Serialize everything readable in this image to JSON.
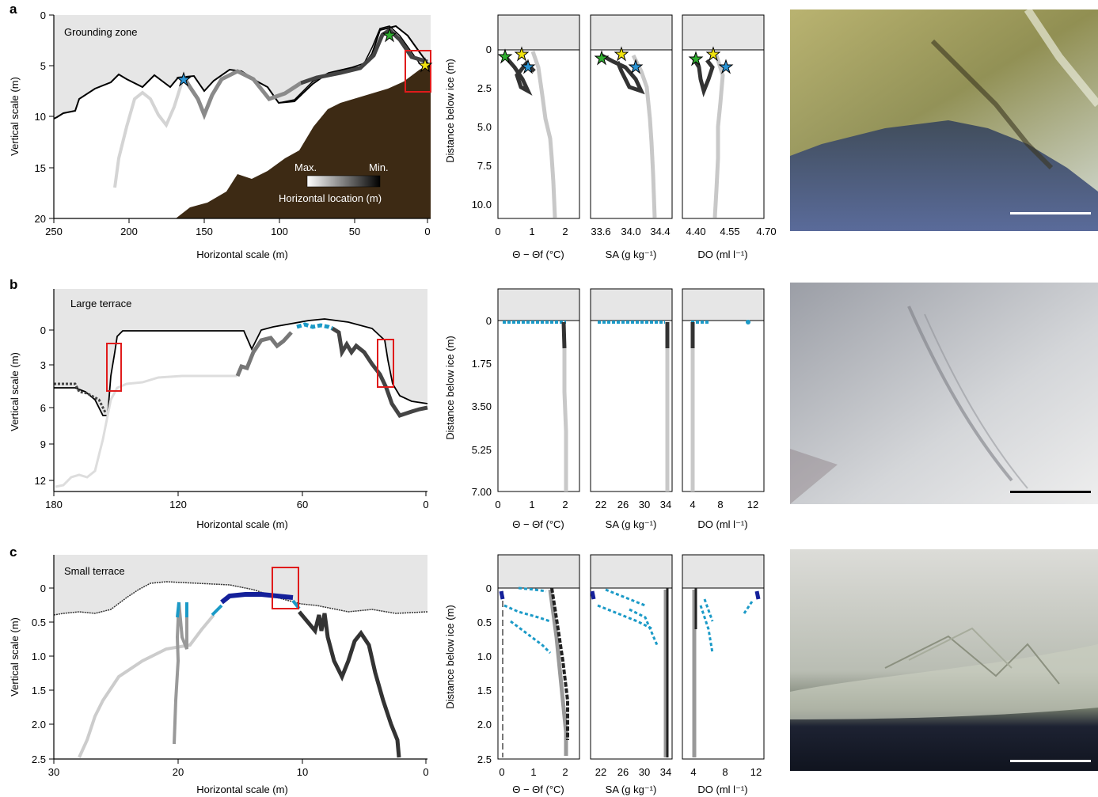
{
  "figure": {
    "panels": [
      {
        "letter": "a",
        "section_label": "Grounding zone",
        "section_plot": {
          "xlabel": "Horizontal scale (m)",
          "ylabel": "Vertical scale (m)",
          "xticks": [
            "250",
            "200",
            "150",
            "100",
            "50",
            "0"
          ],
          "yticks": [
            "0",
            "5",
            "10",
            "15",
            "20"
          ]
        },
        "colorbar": {
          "max_label": "Max.",
          "min_label": "Min.",
          "title": "Horizontal location (m)"
        },
        "profiles": {
          "ylabel": "Distance below ice (m)",
          "yticks": [
            "0",
            "2.5",
            "5.0",
            "7.5",
            "10.0"
          ],
          "subplots": [
            {
              "xticks": [
                "0",
                "1",
                "2"
              ],
              "xlabel": "Θ − Θf (°C)"
            },
            {
              "xticks": [
                "33.6",
                "34.0",
                "34.4"
              ],
              "xlabel": "SA (g kg⁻¹)"
            },
            {
              "xticks": [
                "4.40",
                "4.55",
                "4.70"
              ],
              "xlabel": "DO (ml l⁻¹)"
            }
          ]
        }
      },
      {
        "letter": "b",
        "section_label": "Large terrace",
        "section_plot": {
          "xlabel": "Horizontal scale (m)",
          "ylabel": "Vertical scale (m)",
          "xticks": [
            "180",
            "120",
            "60",
            "0"
          ],
          "yticks": [
            "0",
            "3",
            "6",
            "9",
            "12"
          ]
        },
        "profiles": {
          "ylabel": "Distance below ice (m)",
          "yticks": [
            "0",
            "1.75",
            "3.50",
            "5.25",
            "7.00"
          ],
          "subplots": [
            {
              "xticks": [
                "0",
                "1",
                "2"
              ],
              "xlabel": "Θ − Θf (°C)"
            },
            {
              "xticks": [
                "22",
                "26",
                "30",
                "34"
              ],
              "xlabel": "SA (g kg⁻¹)"
            },
            {
              "xticks": [
                "4",
                "8",
                "12"
              ],
              "xlabel": "DO (ml l⁻¹)"
            }
          ]
        }
      },
      {
        "letter": "c",
        "section_label": "Small terrace",
        "section_plot": {
          "xlabel": "Horizontal scale (m)",
          "ylabel": "Vertical scale (m)",
          "xticks": [
            "30",
            "20",
            "10",
            "0"
          ],
          "yticks": [
            "0",
            "0.5",
            "1.0",
            "1.5",
            "2.0",
            "2.5"
          ]
        },
        "profiles": {
          "ylabel": "Distance below ice (m)",
          "yticks": [
            "0",
            "0.5",
            "1.0",
            "1.5",
            "2.0",
            "2.5"
          ],
          "subplots": [
            {
              "xticks": [
                "0",
                "1",
                "2"
              ],
              "xlabel": "Θ − Θf (°C)"
            },
            {
              "xticks": [
                "22",
                "26",
                "30",
                "34"
              ],
              "xlabel": "SA (g kg⁻¹)"
            },
            {
              "xticks": [
                "4",
                "8",
                "12"
              ],
              "xlabel": "DO (ml l⁻¹)"
            }
          ]
        }
      }
    ],
    "colors": {
      "ice_fill": "#e6e6e6",
      "seabed_fill": "#3d2a14",
      "highlight_box": "#e01b1b",
      "cyan": "#1b9ac7",
      "navy": "#14209a",
      "star_green": "#2fae2f",
      "star_yellow": "#f1e30f",
      "star_blue": "#2b95d6"
    }
  }
}
